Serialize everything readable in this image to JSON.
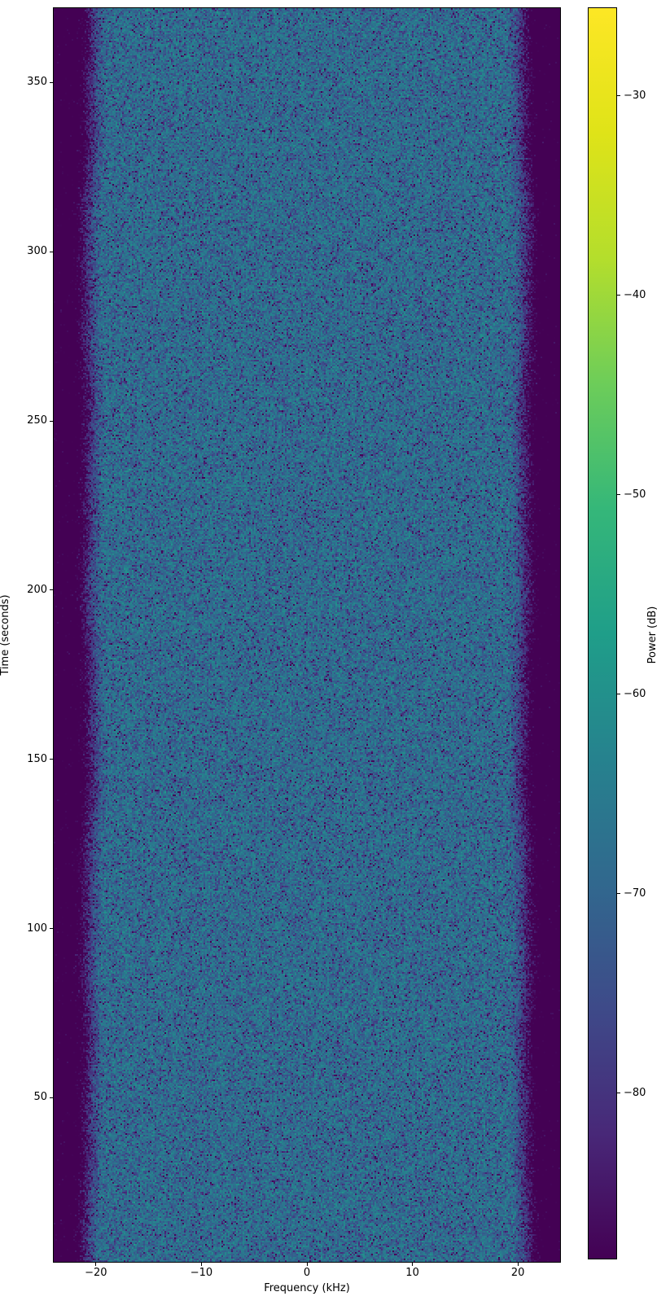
{
  "figure": {
    "background": "#ffffff",
    "text_color": "#000000"
  },
  "chart_data": {
    "type": "heatmap",
    "title": "",
    "xlabel": "Frequency (kHz)",
    "ylabel": "Time (seconds)",
    "xlim": [
      -24,
      24
    ],
    "ylim": [
      1.5,
      372
    ],
    "grid": false,
    "xticks": {
      "values": [
        -20,
        -10,
        0,
        10,
        20
      ],
      "labels": [
        "−20",
        "−10",
        "0",
        "10",
        "20"
      ]
    },
    "yticks": {
      "values": [
        50,
        100,
        150,
        200,
        250,
        300,
        350
      ],
      "labels": [
        "50",
        "100",
        "150",
        "200",
        "250",
        "300",
        "350"
      ]
    },
    "colorbar": {
      "label": "Power (dB)",
      "vmin": -88.3,
      "vmax": -25.6,
      "ticks": {
        "values": [
          -30,
          -40,
          -50,
          -60,
          -70,
          -80
        ],
        "labels": [
          "−30",
          "−40",
          "−50",
          "−60",
          "−70",
          "−80"
        ]
      },
      "colormap": "viridis",
      "stops": [
        [
          0.0,
          "#440154"
        ],
        [
          0.1,
          "#482878"
        ],
        [
          0.2,
          "#3e4a89"
        ],
        [
          0.3,
          "#31688e"
        ],
        [
          0.4,
          "#26828e"
        ],
        [
          0.5,
          "#1f9e89"
        ],
        [
          0.6,
          "#35b779"
        ],
        [
          0.7,
          "#6dcd59"
        ],
        [
          0.8,
          "#b4de2c"
        ],
        [
          0.9,
          "#dfe318"
        ],
        [
          1.0,
          "#fde725"
        ]
      ]
    },
    "signal": {
      "description": "Waterfall spectrogram of band-limited white noise: flat speckled passband near −67 dB across roughly ±19 kHz, rolling off through purple transition bands to below −88 dB (bottom of color scale) beyond about ±22 kHz; uniform over the full 0–372 s span.",
      "passband_level_db": -67,
      "stopband_level_db": -94,
      "passband_edge_khz": 19.0,
      "stopband_edge_khz": 22.3,
      "speckle_noise": "exponential (chi-squared periodogram) per-pixel texture"
    }
  }
}
